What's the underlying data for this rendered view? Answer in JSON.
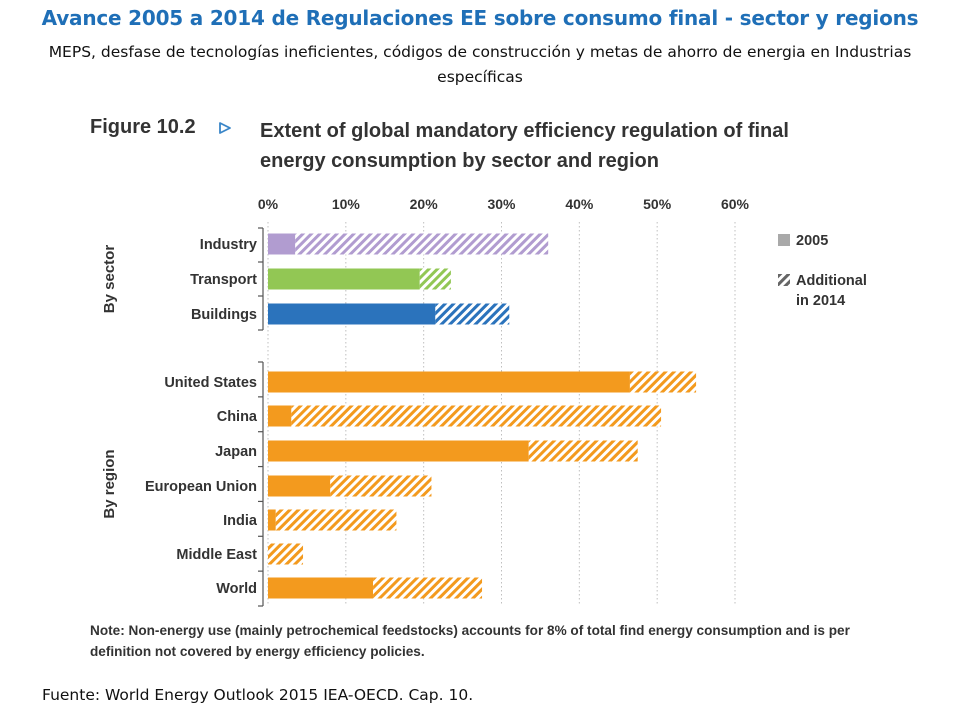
{
  "slide": {
    "title": "Avance 2005 a 2014 de Regulaciones EE sobre consumo final - sector y regions",
    "subtitle": "MEPS, desfase de tecnologías ineficientes, códigos de construcción y metas de ahorro de energia en Industrias específicas",
    "source": "Fuente:  World Energy Outlook 2015  IEA-OECD.  Cap. 10."
  },
  "figure": {
    "number": "Figure 10.2",
    "title_line1": "Extent of global mandatory efficiency regulation of final",
    "title_line2": "energy consumption by sector and region",
    "note": "Note: Non-energy use (mainly petrochemical feedstocks) accounts for 8% of total find energy consumption and is per definition not covered by energy efficiency policies."
  },
  "chart_data": {
    "type": "bar",
    "orientation": "horizontal",
    "stacked": true,
    "xlim": [
      0,
      60
    ],
    "x_ticks": [
      "0%",
      "10%",
      "20%",
      "30%",
      "40%",
      "50%",
      "60%"
    ],
    "gridlines": true,
    "legend": {
      "placement": "right",
      "entries": [
        {
          "label": "2005",
          "style": "solid",
          "color": "#a9a9a9"
        },
        {
          "label_line1": "Additional",
          "label_line2": "in 2014",
          "style": "hatched",
          "color": "#666666"
        }
      ]
    },
    "groups": [
      {
        "label": "By sector",
        "items": [
          {
            "category": "Industry",
            "value_2005": 3.5,
            "additional_2014": 32.5,
            "color": "#b19cd0"
          },
          {
            "category": "Transport",
            "value_2005": 19.5,
            "additional_2014": 4.0,
            "color": "#92c754"
          },
          {
            "category": "Buildings",
            "value_2005": 21.5,
            "additional_2014": 9.5,
            "color": "#2b73bc"
          }
        ]
      },
      {
        "label": "By region",
        "items": [
          {
            "category": "United States",
            "value_2005": 46.5,
            "additional_2014": 8.5,
            "color": "#f39a1e"
          },
          {
            "category": "China",
            "value_2005": 3.0,
            "additional_2014": 47.5,
            "color": "#f39a1e"
          },
          {
            "category": "Japan",
            "value_2005": 33.5,
            "additional_2014": 14.0,
            "color": "#f39a1e"
          },
          {
            "category": "European Union",
            "value_2005": 8.0,
            "additional_2014": 13.0,
            "color": "#f39a1e"
          },
          {
            "category": "India",
            "value_2005": 1.0,
            "additional_2014": 15.5,
            "color": "#f39a1e"
          },
          {
            "category": "Middle East",
            "value_2005": 0.0,
            "additional_2014": 4.5,
            "color": "#f39a1e"
          },
          {
            "category": "World",
            "value_2005": 13.5,
            "additional_2014": 14.0,
            "color": "#f39a1e"
          }
        ]
      }
    ]
  }
}
